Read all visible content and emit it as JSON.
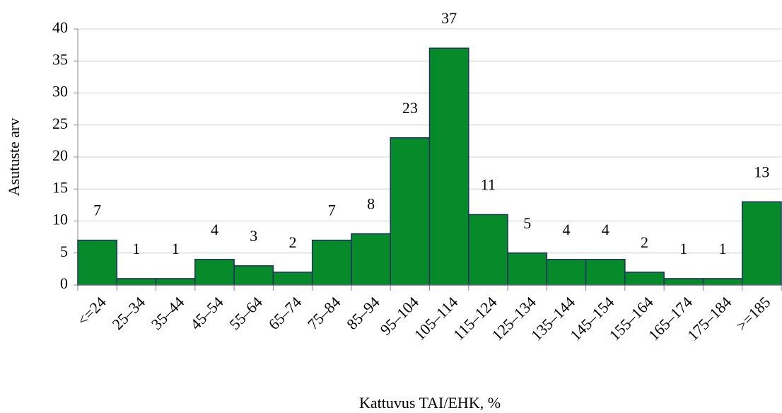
{
  "chart_data": {
    "type": "bar",
    "x_label": "Kattuvus TAI/EHK, %",
    "y_label": "Asutuste arv",
    "categories": [
      "<=24",
      "25–34",
      "35–44",
      "45–54",
      "55–64",
      "65–74",
      "75–84",
      "85–94",
      "95–104",
      "105–114",
      "115–124",
      "125–134",
      "135–144",
      "145–154",
      "155–164",
      "165–174",
      "175–184",
      ">=185"
    ],
    "values": [
      7,
      1,
      1,
      4,
      3,
      2,
      7,
      8,
      23,
      37,
      11,
      5,
      4,
      4,
      2,
      1,
      1,
      13
    ],
    "color": "#078a2a",
    "edge_color": "#1f2f5f",
    "ylim": [
      0,
      40
    ],
    "yticks": [
      0,
      5,
      10,
      15,
      20,
      25,
      30,
      35,
      40
    ],
    "grid": true
  }
}
